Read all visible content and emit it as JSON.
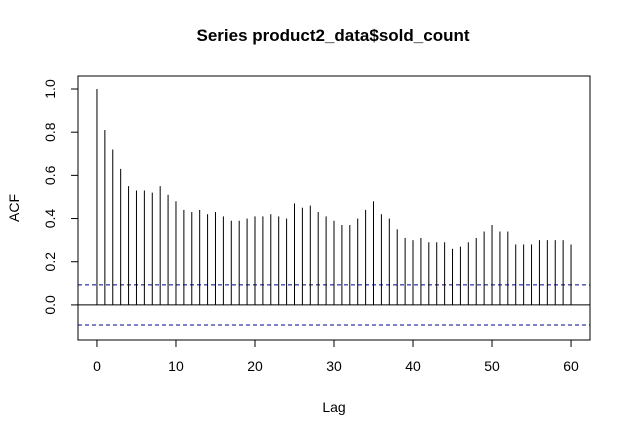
{
  "chart_data": {
    "type": "bar",
    "title": "Series  product2_data$sold_count",
    "xlabel": "Lag",
    "ylabel": "ACF",
    "xlim": [
      -2.4,
      62.4
    ],
    "ylim": [
      -0.1,
      1.0
    ],
    "x_ticks": [
      "0",
      "10",
      "20",
      "30",
      "40",
      "50",
      "60"
    ],
    "y_ticks": [
      "0.0",
      "0.2",
      "0.4",
      "0.6",
      "0.8",
      "1.0"
    ],
    "confidence_limit": 0.093,
    "lags": [
      0,
      1,
      2,
      3,
      4,
      5,
      6,
      7,
      8,
      9,
      10,
      11,
      12,
      13,
      14,
      15,
      16,
      17,
      18,
      19,
      20,
      21,
      22,
      23,
      24,
      25,
      26,
      27,
      28,
      29,
      30,
      31,
      32,
      33,
      34,
      35,
      36,
      37,
      38,
      39,
      40,
      41,
      42,
      43,
      44,
      45,
      46,
      47,
      48,
      49,
      50,
      51,
      52,
      53,
      54,
      55,
      56,
      57,
      58,
      59,
      60
    ],
    "values": [
      1.0,
      0.81,
      0.72,
      0.63,
      0.55,
      0.53,
      0.53,
      0.52,
      0.55,
      0.51,
      0.48,
      0.44,
      0.43,
      0.44,
      0.42,
      0.43,
      0.41,
      0.39,
      0.39,
      0.4,
      0.41,
      0.41,
      0.42,
      0.41,
      0.4,
      0.47,
      0.45,
      0.46,
      0.43,
      0.41,
      0.39,
      0.37,
      0.37,
      0.4,
      0.44,
      0.48,
      0.42,
      0.4,
      0.35,
      0.31,
      0.3,
      0.31,
      0.29,
      0.29,
      0.29,
      0.26,
      0.27,
      0.29,
      0.31,
      0.34,
      0.37,
      0.34,
      0.34,
      0.28,
      0.28,
      0.28,
      0.3,
      0.3,
      0.3,
      0.3,
      0.28
    ],
    "grid": false,
    "colors": {
      "bars": "#000000",
      "confidence": "#00008b",
      "zero_line": "#000000"
    }
  }
}
